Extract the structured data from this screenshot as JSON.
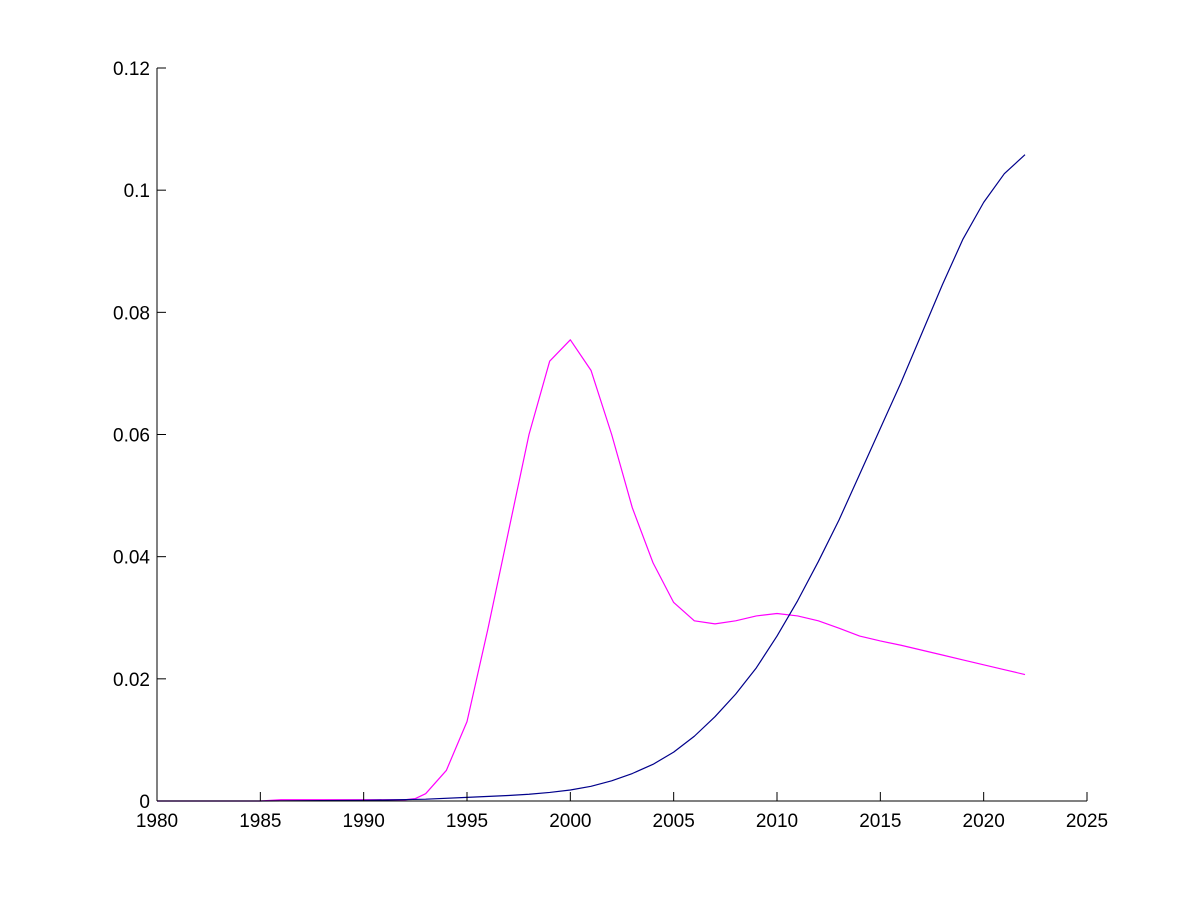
{
  "chart_data": {
    "type": "line",
    "xlim": [
      1980,
      2025
    ],
    "ylim": [
      0,
      0.12
    ],
    "x_ticks": [
      1980,
      1985,
      1990,
      1995,
      2000,
      2005,
      2010,
      2015,
      2020,
      2025
    ],
    "x_tick_labels": [
      "1980",
      "1985",
      "1990",
      "1995",
      "2000",
      "2005",
      "2010",
      "2015",
      "2020",
      "2025"
    ],
    "y_ticks": [
      0,
      0.02,
      0.04,
      0.06,
      0.08,
      0.1,
      0.12
    ],
    "y_tick_labels": [
      "0",
      "0.02",
      "0.04",
      "0.06",
      "0.08",
      "0.1",
      "0.12"
    ],
    "grid": false,
    "legend": "none",
    "series": [
      {
        "color": "#ff00ff",
        "x": [
          1980,
          1985,
          1986,
          1990,
          1992,
          1992.5,
          1993,
          1994,
          1995,
          1996,
          1997,
          1998,
          1999,
          2000,
          2001,
          2002,
          2003,
          2004,
          2005,
          2006,
          2007,
          2008,
          2009,
          2010,
          2011,
          2012,
          2013,
          2014,
          2015,
          2016,
          2017,
          2018,
          2019,
          2020,
          2021,
          2022
        ],
        "values": [
          0,
          0,
          0.0002,
          0.0002,
          0.0002,
          0.0004,
          0.0012,
          0.005,
          0.013,
          0.028,
          0.044,
          0.06,
          0.072,
          0.0755,
          0.0705,
          0.06,
          0.048,
          0.039,
          0.0325,
          0.0295,
          0.029,
          0.0295,
          0.0303,
          0.0307,
          0.0303,
          0.0295,
          0.0283,
          0.027,
          0.0262,
          0.0255,
          0.0247,
          0.0239,
          0.0231,
          0.0223,
          0.0215,
          0.0207
        ]
      },
      {
        "color": "#00008b",
        "x": [
          1980,
          1985,
          1990,
          1993,
          1995,
          1997,
          1998,
          1999,
          2000,
          2001,
          2002,
          2003,
          2004,
          2005,
          2006,
          2007,
          2008,
          2009,
          2010,
          2011,
          2012,
          2013,
          2014,
          2015,
          2016,
          2017,
          2018,
          2019,
          2020,
          2021,
          2022
        ],
        "values": [
          0,
          0,
          0.0001,
          0.0003,
          0.0006,
          0.0009,
          0.0011,
          0.0014,
          0.0018,
          0.0024,
          0.0033,
          0.0045,
          0.006,
          0.008,
          0.0106,
          0.0138,
          0.0175,
          0.0218,
          0.027,
          0.0328,
          0.0392,
          0.046,
          0.0535,
          0.061,
          0.0685,
          0.0765,
          0.0845,
          0.092,
          0.098,
          0.1027,
          0.1058
        ]
      }
    ]
  }
}
